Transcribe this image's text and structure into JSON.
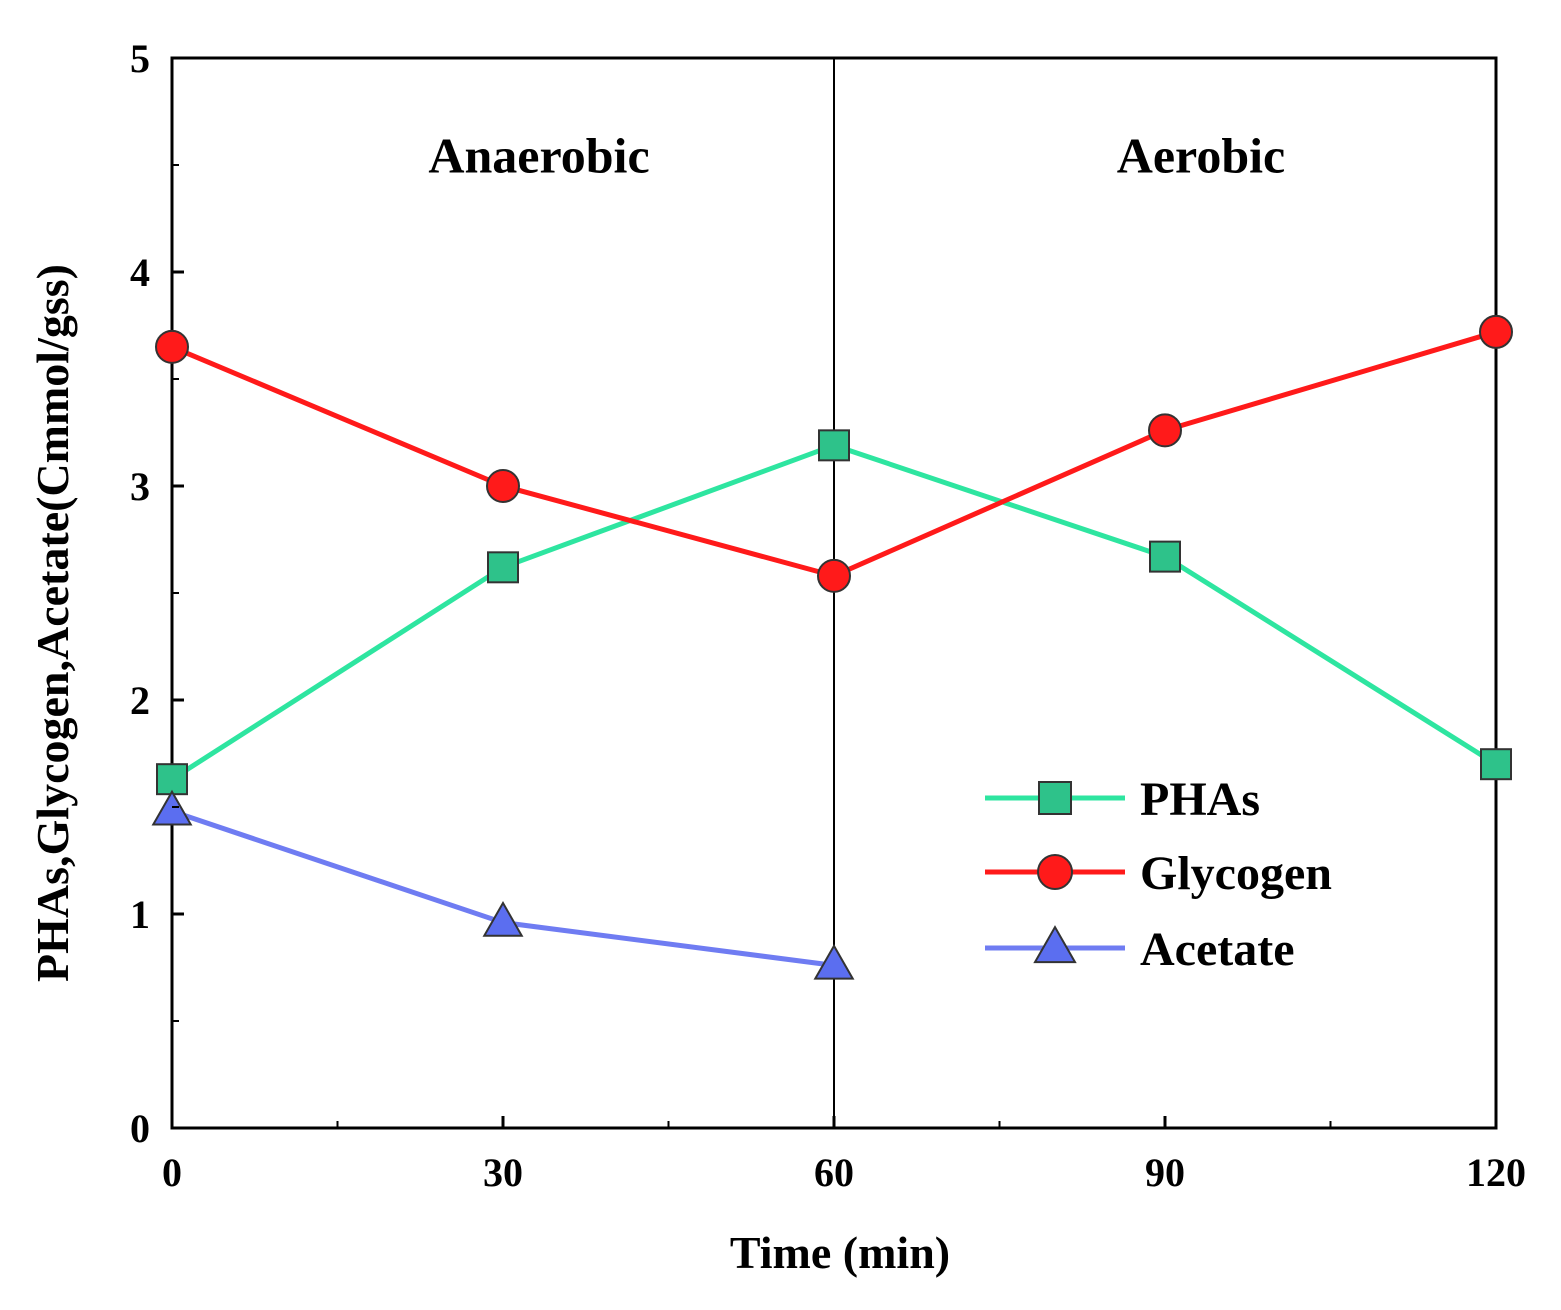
{
  "chart_data": {
    "type": "line",
    "title": "",
    "xlabel": "Time (min)",
    "ylabel": "PHAs,Glycogen,Acetate(Cmmol/gss)",
    "xlim": [
      0,
      120
    ],
    "ylim": [
      0,
      5
    ],
    "xticks": [
      0,
      30,
      60,
      90,
      120
    ],
    "yticks": [
      0,
      1,
      2,
      3,
      4,
      5
    ],
    "x_minor_step": 15,
    "y_minor_step": 0.5,
    "grid": false,
    "legend_position": "center-right",
    "divider": {
      "x": 60
    },
    "phase_labels": [
      {
        "text": "Anaerobic",
        "x": 30,
        "y": 4.55
      },
      {
        "text": "Aerobic",
        "x": 90,
        "y": 4.55
      }
    ],
    "series": [
      {
        "name": "PHAs",
        "marker": "square",
        "color": "#2ee5a0",
        "marker_fill": "#2ec28a",
        "x": [
          0,
          30,
          60,
          90,
          120
        ],
        "values": [
          1.63,
          2.62,
          3.19,
          2.67,
          1.7
        ]
      },
      {
        "name": "Glycogen",
        "marker": "circle",
        "color": "#ff1a1a",
        "marker_fill": "#ff1a1a",
        "x": [
          0,
          30,
          60,
          90,
          120
        ],
        "values": [
          3.65,
          3.0,
          2.58,
          3.26,
          3.72
        ]
      },
      {
        "name": "Acetate",
        "marker": "triangle",
        "color": "#6f7cf2",
        "marker_fill": "#5b6ef0",
        "x": [
          0,
          30,
          60
        ],
        "values": [
          1.48,
          0.96,
          0.76
        ]
      }
    ]
  }
}
